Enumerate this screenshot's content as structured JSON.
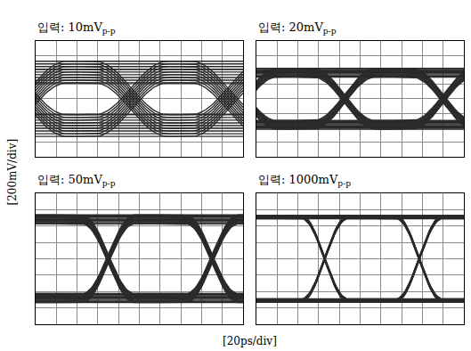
{
  "figure": {
    "x_label": "[20ps/div]",
    "y_label": "[200mV/div]"
  },
  "chart_data": [
    {
      "type": "line",
      "title": "입력: 10mV",
      "title_sub": "p-p",
      "xlim": [
        0,
        200
      ],
      "xticks": [
        0,
        20,
        40,
        60,
        80,
        100,
        120,
        140,
        160,
        180,
        200
      ],
      "ylim": [
        -800,
        800
      ],
      "yticks": [
        -800,
        -600,
        -400,
        -200,
        0,
        200,
        400,
        600,
        800
      ],
      "grid": true,
      "tick_labels": false,
      "color": "#2a2a2a",
      "eye": {
        "levels": [
          -370,
          370
        ],
        "noise_band": 300,
        "rise": 70,
        "crossings": [
          -5,
          92,
          185
        ]
      }
    },
    {
      "type": "line",
      "title": "입력: 20mV",
      "title_sub": "p-p",
      "xlim": [
        0,
        200
      ],
      "xticks": [
        0,
        20,
        40,
        60,
        80,
        100,
        120,
        140,
        160,
        180,
        200
      ],
      "ylim": [
        -800,
        800
      ],
      "yticks": [
        -800,
        -600,
        -400,
        -200,
        0,
        200,
        400,
        600,
        800
      ],
      "grid": true,
      "tick_labels": false,
      "color": "#2a2a2a",
      "eye": {
        "levels": [
          -360,
          360
        ],
        "noise_band": 120,
        "rise": 60,
        "crossings": [
          -10,
          85,
          180
        ]
      }
    },
    {
      "type": "line",
      "title": "입력: 50mV",
      "title_sub": "p-p",
      "xlim": [
        0,
        200
      ],
      "xticks": [
        0,
        20,
        40,
        60,
        80,
        100,
        120,
        140,
        160,
        180,
        200
      ],
      "ylim": [
        -800,
        800
      ],
      "yticks": [
        -800,
        -600,
        -400,
        -200,
        0,
        200,
        400,
        600,
        800
      ],
      "grid": true,
      "tick_labels": false,
      "color": "#2a2a2a",
      "eye": {
        "levels": [
          -480,
          480
        ],
        "noise_band": 110,
        "rise": 50,
        "crossings": [
          -30,
          70,
          170
        ]
      }
    },
    {
      "type": "line",
      "title": "입력: 1000mV",
      "title_sub": "p-p",
      "xlim": [
        0,
        200
      ],
      "xticks": [
        0,
        20,
        40,
        60,
        80,
        100,
        120,
        140,
        160,
        180,
        200
      ],
      "ylim": [
        -800,
        800
      ],
      "yticks": [
        -800,
        -600,
        -400,
        -200,
        0,
        200,
        400,
        600,
        800
      ],
      "grid": true,
      "tick_labels": false,
      "color": "#2a2a2a",
      "eye": {
        "levels": [
          -510,
          510
        ],
        "noise_band": 40,
        "rise": 45,
        "crossings": [
          -25,
          66,
          157
        ]
      }
    }
  ]
}
